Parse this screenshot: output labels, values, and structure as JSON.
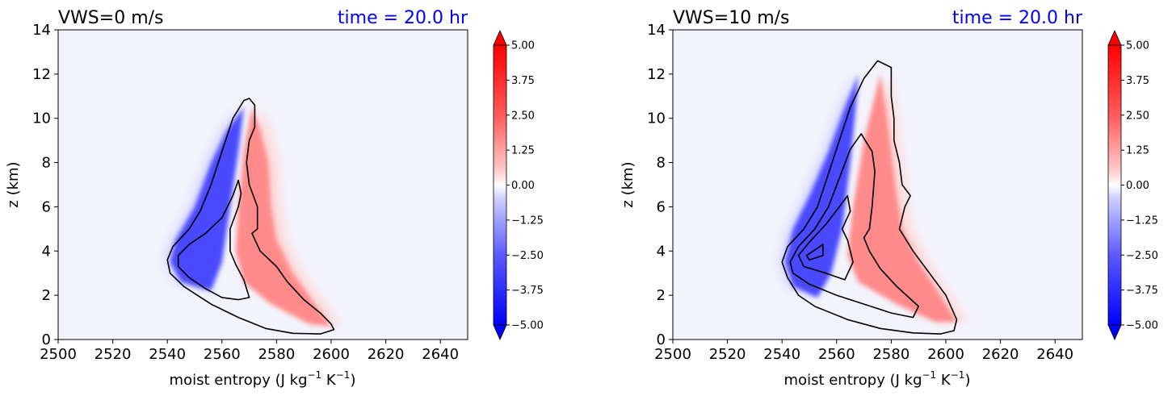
{
  "chart_data": [
    {
      "type": "heatmap",
      "title_left": "VWS=0 m/s",
      "title_right": "time = 20.0 hr",
      "xlabel": "moist entropy (J kg$^{-1}$ K$^{-1}$)",
      "xlabel_text": "moist entropy (J kg",
      "xlabel_sup1": "−1",
      "xlabel_mid": " K",
      "xlabel_sup2": "−1",
      "xlabel_end": ")",
      "ylabel": "z (km)",
      "xlim": [
        2500,
        2650
      ],
      "ylim": [
        0,
        14
      ],
      "xticks": [
        "2500",
        "2520",
        "2540",
        "2560",
        "2580",
        "2600",
        "2620",
        "2640"
      ],
      "yticks": [
        "0",
        "2",
        "4",
        "6",
        "8",
        "10",
        "12",
        "14"
      ],
      "colorbar_ticks": [
        "5.00",
        "3.75",
        "2.50",
        "1.25",
        "0.00",
        "−1.25",
        "−2.50",
        "−3.75",
        "−5.00"
      ],
      "blue_core": [
        [
          2568,
          10.5
        ],
        [
          2562,
          9.5
        ],
        [
          2556,
          8.0
        ],
        [
          2550,
          6.0
        ],
        [
          2543,
          4.5
        ],
        [
          2541,
          3.5
        ],
        [
          2545,
          2.6
        ],
        [
          2556,
          2.2
        ],
        [
          2560,
          3.5
        ],
        [
          2563,
          6.0
        ],
        [
          2566,
          8.5
        ]
      ],
      "red_core": [
        [
          2571,
          10.5
        ],
        [
          2574,
          9.5
        ],
        [
          2577,
          8.0
        ],
        [
          2578,
          6.0
        ],
        [
          2580,
          4.5
        ],
        [
          2586,
          3.0
        ],
        [
          2594,
          1.6
        ],
        [
          2600,
          0.6
        ],
        [
          2592,
          0.7
        ],
        [
          2578,
          1.6
        ],
        [
          2568,
          2.6
        ],
        [
          2565,
          4.0
        ],
        [
          2566,
          6.0
        ],
        [
          2568,
          8.5
        ]
      ],
      "contour_outer": [
        [
          2570,
          10.9
        ],
        [
          2572,
          10.6
        ],
        [
          2572,
          9.6
        ],
        [
          2570,
          9.0
        ],
        [
          2569,
          8.0
        ],
        [
          2570,
          7.0
        ],
        [
          2573,
          6.0
        ],
        [
          2573,
          5.0
        ],
        [
          2571,
          4.8
        ],
        [
          2574,
          4.0
        ],
        [
          2580,
          3.3
        ],
        [
          2584,
          2.6
        ],
        [
          2590,
          1.8
        ],
        [
          2596,
          1.2
        ],
        [
          2600,
          0.7
        ],
        [
          2601,
          0.45
        ],
        [
          2596,
          0.25
        ],
        [
          2586,
          0.28
        ],
        [
          2576,
          0.5
        ],
        [
          2566,
          1.0
        ],
        [
          2556,
          1.6
        ],
        [
          2546,
          2.4
        ],
        [
          2541,
          3.0
        ],
        [
          2540,
          3.6
        ],
        [
          2542,
          4.2
        ],
        [
          2548,
          5.0
        ],
        [
          2552,
          5.8
        ],
        [
          2556,
          7.0
        ],
        [
          2560,
          8.5
        ],
        [
          2564,
          10.0
        ],
        [
          2568,
          10.8
        ],
        [
          2570,
          10.9
        ]
      ],
      "contour_inner": [
        [
          2566,
          7.2
        ],
        [
          2567,
          6.6
        ],
        [
          2566,
          6.0
        ],
        [
          2563,
          5.0
        ],
        [
          2563,
          4.4
        ],
        [
          2563,
          4.0
        ],
        [
          2565,
          3.4
        ],
        [
          2568,
          2.7
        ],
        [
          2570,
          1.9
        ],
        [
          2566,
          1.8
        ],
        [
          2560,
          1.9
        ],
        [
          2554,
          2.3
        ],
        [
          2548,
          2.8
        ],
        [
          2544,
          3.3
        ],
        [
          2544,
          3.8
        ],
        [
          2548,
          4.3
        ],
        [
          2554,
          4.8
        ],
        [
          2560,
          5.5
        ],
        [
          2564,
          6.5
        ],
        [
          2566,
          7.2
        ]
      ]
    },
    {
      "type": "heatmap",
      "title_left": "VWS=10 m/s",
      "title_right": "time = 20.0 hr",
      "xlabel": "moist entropy (J kg$^{-1}$ K$^{-1}$)",
      "xlabel_text": "moist entropy (J kg",
      "xlabel_sup1": "−1",
      "xlabel_mid": " K",
      "xlabel_sup2": "−1",
      "xlabel_end": ")",
      "ylabel": "z (km)",
      "xlim": [
        2500,
        2650
      ],
      "ylim": [
        0,
        14
      ],
      "xticks": [
        "2500",
        "2520",
        "2540",
        "2560",
        "2580",
        "2600",
        "2620",
        "2640"
      ],
      "yticks": [
        "0",
        "2",
        "4",
        "6",
        "8",
        "10",
        "12",
        "14"
      ],
      "colorbar_ticks": [
        "5.00",
        "3.75",
        "2.50",
        "1.25",
        "0.00",
        "−1.25",
        "−2.50",
        "−3.75",
        "−5.00"
      ],
      "blue_core": [
        [
          2568,
          12.0
        ],
        [
          2563,
          10.5
        ],
        [
          2557,
          8.5
        ],
        [
          2550,
          6.5
        ],
        [
          2544,
          5.0
        ],
        [
          2541,
          3.5
        ],
        [
          2544,
          2.4
        ],
        [
          2553,
          1.9
        ],
        [
          2558,
          3.0
        ],
        [
          2562,
          5.0
        ],
        [
          2565,
          8.0
        ],
        [
          2567,
          10.5
        ]
      ],
      "red_core": [
        [
          2576,
          12.0
        ],
        [
          2578,
          10.5
        ],
        [
          2580,
          8.5
        ],
        [
          2582,
          6.5
        ],
        [
          2584,
          5.0
        ],
        [
          2590,
          3.5
        ],
        [
          2598,
          2.0
        ],
        [
          2604,
          0.8
        ],
        [
          2596,
          0.8
        ],
        [
          2582,
          1.6
        ],
        [
          2568,
          2.6
        ],
        [
          2564,
          3.8
        ],
        [
          2566,
          6.0
        ],
        [
          2570,
          9.0
        ]
      ],
      "contour_outer": [
        [
          2575,
          12.6
        ],
        [
          2580,
          12.3
        ],
        [
          2580,
          11.0
        ],
        [
          2581,
          10.0
        ],
        [
          2581,
          9.0
        ],
        [
          2583,
          8.0
        ],
        [
          2584,
          7.0
        ],
        [
          2587,
          6.5
        ],
        [
          2585,
          6.0
        ],
        [
          2584,
          5.5
        ],
        [
          2583,
          5.0
        ],
        [
          2585,
          4.6
        ],
        [
          2588,
          4.0
        ],
        [
          2594,
          3.0
        ],
        [
          2600,
          2.0
        ],
        [
          2604,
          0.9
        ],
        [
          2603,
          0.4
        ],
        [
          2598,
          0.25
        ],
        [
          2588,
          0.3
        ],
        [
          2576,
          0.5
        ],
        [
          2564,
          0.9
        ],
        [
          2552,
          1.5
        ],
        [
          2546,
          2.0
        ],
        [
          2542,
          2.8
        ],
        [
          2540,
          3.5
        ],
        [
          2542,
          4.2
        ],
        [
          2548,
          5.0
        ],
        [
          2553,
          6.0
        ],
        [
          2557,
          7.5
        ],
        [
          2561,
          9.0
        ],
        [
          2565,
          10.5
        ],
        [
          2570,
          11.8
        ],
        [
          2575,
          12.6
        ]
      ],
      "contour_mid": [
        [
          2569,
          9.3
        ],
        [
          2573,
          8.5
        ],
        [
          2574,
          7.6
        ],
        [
          2573,
          6.0
        ],
        [
          2572,
          5.0
        ],
        [
          2570,
          4.6
        ],
        [
          2572,
          4.0
        ],
        [
          2576,
          3.2
        ],
        [
          2582,
          2.4
        ],
        [
          2590,
          1.5
        ],
        [
          2588,
          1.0
        ],
        [
          2580,
          1.2
        ],
        [
          2570,
          1.6
        ],
        [
          2560,
          2.0
        ],
        [
          2550,
          2.5
        ],
        [
          2544,
          3.0
        ],
        [
          2543,
          3.5
        ],
        [
          2546,
          4.2
        ],
        [
          2552,
          5.0
        ],
        [
          2557,
          6.0
        ],
        [
          2561,
          7.3
        ],
        [
          2565,
          8.6
        ],
        [
          2569,
          9.3
        ]
      ],
      "contour_inner": [
        [
          2564,
          6.5
        ],
        [
          2565,
          5.8
        ],
        [
          2562,
          5.0
        ],
        [
          2564,
          4.5
        ],
        [
          2566,
          3.5
        ],
        [
          2563,
          2.7
        ],
        [
          2556,
          3.0
        ],
        [
          2548,
          3.3
        ],
        [
          2546,
          3.8
        ],
        [
          2550,
          4.4
        ],
        [
          2556,
          5.2
        ],
        [
          2561,
          6.0
        ],
        [
          2564,
          6.5
        ]
      ],
      "contour_small": [
        [
          2549,
          3.8
        ],
        [
          2555,
          4.3
        ],
        [
          2555,
          3.8
        ],
        [
          2550,
          3.6
        ],
        [
          2549,
          3.8
        ]
      ]
    }
  ],
  "colors": {
    "background_field": "#eeeef8",
    "neutral": "#f4f4fc",
    "title_right": "#0000ff",
    "contour": "#000000"
  }
}
